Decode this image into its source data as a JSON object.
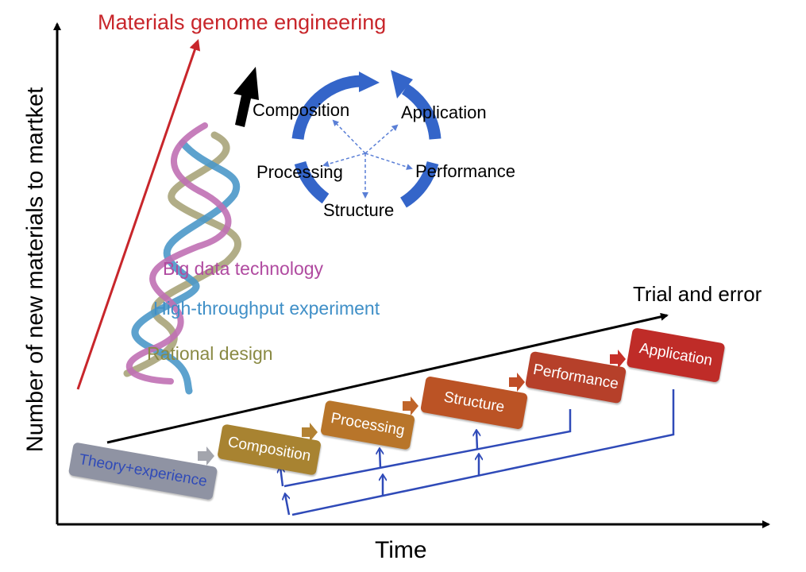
{
  "axes": {
    "x_label": "Time",
    "y_label": "Number of new materials to martket"
  },
  "genome": {
    "title": "Materials genome engineering",
    "helix_labels": [
      "Big data technology",
      "High-throughput experiment",
      "Rational design"
    ],
    "cycle_labels": [
      "Composition",
      "Application",
      "Performance",
      "Structure",
      "Processing"
    ]
  },
  "trial": {
    "title": "Trial and error",
    "theory_label": "Theory+experience",
    "steps": [
      "Composition",
      "Processing",
      "Structure",
      "Performance",
      "Application"
    ]
  },
  "colors": {
    "genome_red": "#c8262b",
    "helix_magenta": "#b04aa0",
    "helix_blue": "#3f8fc7",
    "helix_olive": "#8a8a44",
    "cycle_blue": "#3465c9",
    "feedback_blue": "#2f4ab8",
    "theory_gray": "#8f93a3",
    "step_colors": [
      "#a88331",
      "#b8752a",
      "#bb5325",
      "#b6402a",
      "#bf2c28"
    ]
  }
}
